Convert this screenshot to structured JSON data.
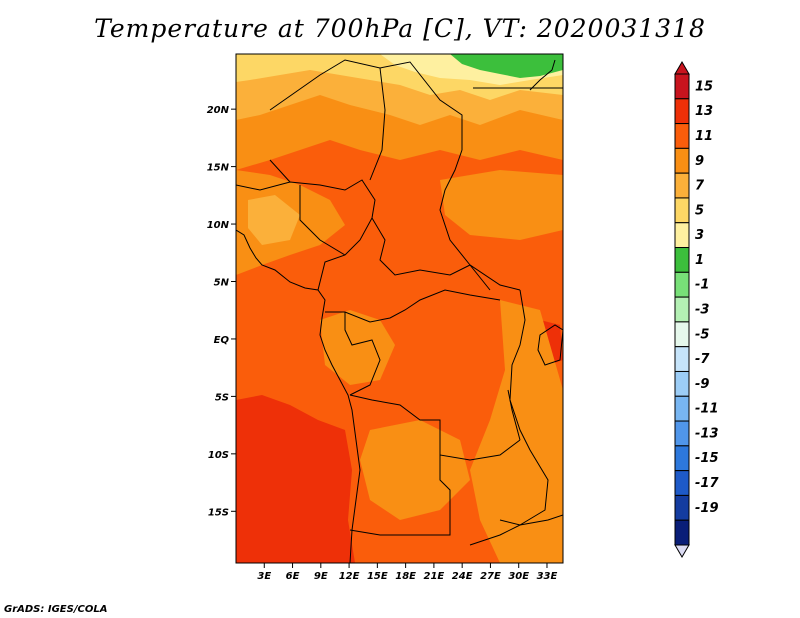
{
  "title": "Temperature at 700hPa [C], VT: 2020031318",
  "footer": "GrADS: IGES/COLA",
  "map": {
    "lat_ticks": [
      {
        "lat": 20,
        "label": "20N"
      },
      {
        "lat": 15,
        "label": "15N"
      },
      {
        "lat": 10,
        "label": "10N"
      },
      {
        "lat": 5,
        "label": "5N"
      },
      {
        "lat": 0,
        "label": "EQ"
      },
      {
        "lat": -5,
        "label": "5S"
      },
      {
        "lat": -10,
        "label": "10S"
      },
      {
        "lat": -15,
        "label": "15S"
      }
    ],
    "lon_ticks": [
      {
        "lon": 3,
        "label": "3E"
      },
      {
        "lon": 6,
        "label": "6E"
      },
      {
        "lon": 9,
        "label": "9E"
      },
      {
        "lon": 12,
        "label": "12E"
      },
      {
        "lon": 15,
        "label": "15E"
      },
      {
        "lon": 18,
        "label": "18E"
      },
      {
        "lon": 21,
        "label": "21E"
      },
      {
        "lon": 24,
        "label": "24E"
      },
      {
        "lon": 27,
        "label": "27E"
      },
      {
        "lon": 30,
        "label": "30E"
      },
      {
        "lon": 33,
        "label": "33E"
      }
    ],
    "lat_range": [
      -19.5,
      24.8
    ],
    "lon_range": [
      0,
      34.7
    ]
  },
  "colorbar": {
    "levels": [
      {
        "label": "15",
        "color": "#c8141e"
      },
      {
        "label": "13",
        "color": "#ee3008"
      },
      {
        "label": "11",
        "color": "#fa5d0b"
      },
      {
        "label": "9",
        "color": "#f98f14"
      },
      {
        "label": "7",
        "color": "#fbb03a"
      },
      {
        "label": "5",
        "color": "#fdd765"
      },
      {
        "label": "3",
        "color": "#fef0a0"
      },
      {
        "label": "1",
        "color": "#3cbf3c"
      },
      {
        "label": "-1",
        "color": "#78e078"
      },
      {
        "label": "-3",
        "color": "#b4f0b4"
      },
      {
        "label": "-5",
        "color": "#e6f8ec"
      },
      {
        "label": "-7",
        "color": "#c6e4fa"
      },
      {
        "label": "-9",
        "color": "#9ccdf6"
      },
      {
        "label": "-11",
        "color": "#78b6f2"
      },
      {
        "label": "-13",
        "color": "#5096ea"
      },
      {
        "label": "-15",
        "color": "#2d78dc"
      },
      {
        "label": "-17",
        "color": "#1e5ac8"
      },
      {
        "label": "-19",
        "color": "#143ca0"
      }
    ],
    "top_color": "#c8141e",
    "bottom_color": "#dcdcf4",
    "extra_bottom_color": "#0a1e78"
  }
}
